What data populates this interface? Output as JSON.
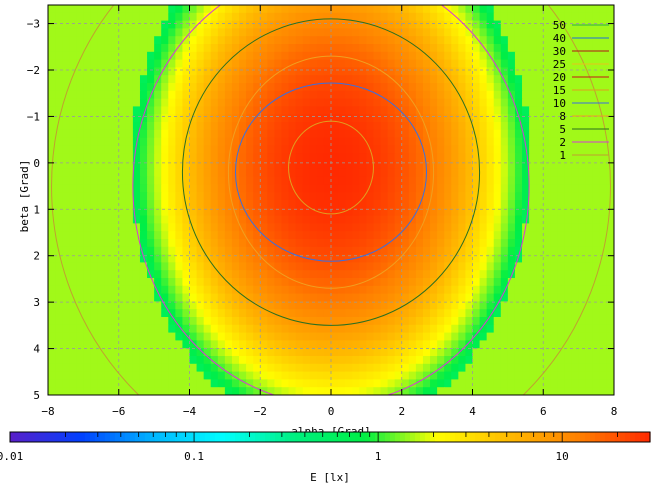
{
  "chart_data": {
    "type": "heatmap",
    "title": "",
    "xlabel": "alpha [Grad]",
    "ylabel": "beta [Grad]",
    "xlim": [
      -8,
      8
    ],
    "ylim": [
      -3.4,
      5
    ],
    "x_ticks": [
      -8,
      -6,
      -4,
      -2,
      0,
      2,
      4,
      6,
      8
    ],
    "y_ticks": [
      -3,
      -2,
      -1,
      0,
      1,
      2,
      3,
      4,
      5
    ],
    "y_axis_inverted": true,
    "grid": true,
    "colorbar": {
      "label": "E [lx]",
      "scale": "log",
      "range": [
        0.01,
        30
      ],
      "tick_labels": [
        "0.01",
        "0.1",
        "1",
        "10"
      ],
      "tick_values": [
        0.01,
        0.1,
        1,
        10
      ],
      "colors": [
        "#5a1fc8",
        "#0040ff",
        "#00b4ff",
        "#00ffff",
        "#00f080",
        "#00ee44",
        "#ffff00",
        "#ffbb00",
        "#ff8000",
        "#ff2a00"
      ]
    },
    "contour_levels": [
      50,
      40,
      30,
      25,
      20,
      15,
      10,
      8,
      5,
      2,
      1
    ],
    "contour_colors": [
      "#2bb04a",
      "#1f6fd9",
      "#b01818",
      "#e8c21a",
      "#c81818",
      "#e0a020",
      "#3a6fe0",
      "#f0a020",
      "#2a7020",
      "#d63ad6",
      "#c0a030"
    ],
    "contours": [
      {
        "level": 15,
        "rx": 1.2,
        "ry": 1.0,
        "cy": 0.1
      },
      {
        "level": 10,
        "rx": 2.7,
        "ry": 1.92,
        "cy": 0.2
      },
      {
        "level": 8,
        "rx": 2.9,
        "ry": 2.5,
        "cy": 0.2
      },
      {
        "level": 5,
        "rx": 4.2,
        "ry": 3.3,
        "cy": 0.2
      },
      {
        "level": 2,
        "rx": 5.6,
        "ry": 4.7,
        "cy": 0.5
      },
      {
        "level": 1,
        "rx": 7.9,
        "ry": 6.2,
        "cy": 0.5
      }
    ],
    "field": {
      "peak": 30,
      "cx": 0,
      "cy": 0.1,
      "sx": 4.7,
      "sy": 4.8,
      "power": 2.2
    }
  }
}
